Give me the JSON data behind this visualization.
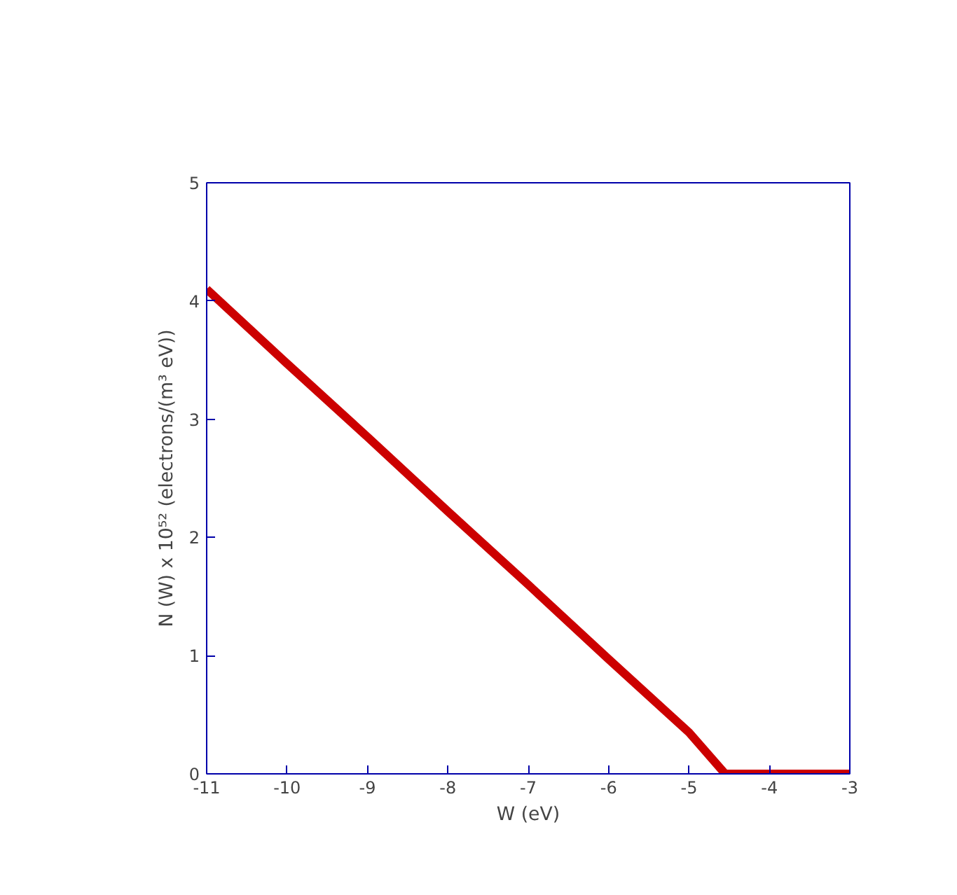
{
  "chart_data": {
    "type": "line",
    "xlabel": "W (eV)",
    "ylabel": "N (W) x 10⁵² (electrons/(m³ eV))",
    "x": [
      -11,
      -10,
      -9,
      -8,
      -7,
      -6,
      -5,
      -4.55,
      -4,
      -3.5,
      -3
    ],
    "series": [
      {
        "color": "#cc0000",
        "values": [
          4.1,
          3.47,
          2.85,
          2.22,
          1.6,
          0.97,
          0.35,
          0,
          0,
          0,
          0
        ]
      }
    ],
    "xlim": [
      -11,
      -3
    ],
    "ylim": [
      0,
      5
    ],
    "xticks": [
      -11,
      -10,
      -9,
      -8,
      -7,
      -6,
      -5,
      -4,
      -3
    ],
    "yticks": [
      0,
      1,
      2,
      3,
      4,
      5
    ],
    "grid": false
  }
}
